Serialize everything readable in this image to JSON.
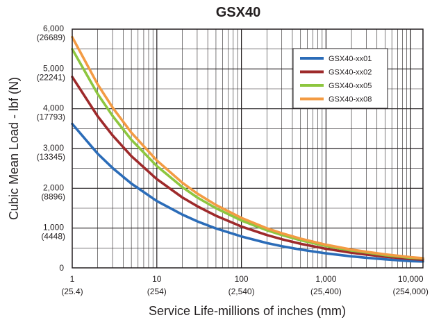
{
  "chart_data": {
    "type": "line",
    "title": "GSX40",
    "xlabel": "Service Life-millions of inches (mm)",
    "ylabel": "Cubic Mean Load - lbf (N)",
    "x_scale": "log",
    "xlim": [
      1,
      14000
    ],
    "ylim": [
      0,
      6000
    ],
    "grid": true,
    "legend_position": "top-right",
    "x_ticks": [
      {
        "value": 1,
        "label": "1",
        "sublabel": "(25.4)"
      },
      {
        "value": 10,
        "label": "10",
        "sublabel": "(254)"
      },
      {
        "value": 100,
        "label": "100",
        "sublabel": "(2,540)"
      },
      {
        "value": 1000,
        "label": "1,000",
        "sublabel": "(25,400)"
      },
      {
        "value": 10000,
        "label": "10,000",
        "sublabel": "(254,000)"
      }
    ],
    "y_ticks": [
      {
        "value": 0,
        "label": "0",
        "sublabel": ""
      },
      {
        "value": 1000,
        "label": "1,000",
        "sublabel": "(4448)"
      },
      {
        "value": 2000,
        "label": "2,000",
        "sublabel": "(8896)"
      },
      {
        "value": 3000,
        "label": "3,000",
        "sublabel": "(13345)"
      },
      {
        "value": 4000,
        "label": "4,000",
        "sublabel": "(17793)"
      },
      {
        "value": 5000,
        "label": "5,000",
        "sublabel": "(22241)"
      },
      {
        "value": 6000,
        "label": "6,000",
        "sublabel": "(26689)"
      }
    ],
    "x": [
      1,
      2,
      3,
      5,
      10,
      20,
      30,
      50,
      100,
      200,
      300,
      500,
      1000,
      2000,
      3000,
      5000,
      10000,
      14000
    ],
    "series": [
      {
        "name": "GSX40-xx01",
        "color": "#2b6cb8",
        "values": [
          3620,
          2870,
          2510,
          2120,
          1680,
          1340,
          1170,
          990,
          790,
          625,
          545,
          460,
          365,
          290,
          255,
          215,
          170,
          160
        ]
      },
      {
        "name": "GSX40-xx02",
        "color": "#9e2a2b",
        "values": [
          4800,
          3810,
          3330,
          2810,
          2230,
          1770,
          1550,
          1310,
          1040,
          825,
          720,
          605,
          480,
          380,
          335,
          280,
          225,
          205
        ]
      },
      {
        "name": "GSX40-xx05",
        "color": "#8dc63f",
        "values": [
          5500,
          4370,
          3820,
          3220,
          2560,
          2030,
          1770,
          1500,
          1190,
          945,
          825,
          695,
          550,
          435,
          385,
          320,
          255,
          235
        ]
      },
      {
        "name": "GSX40-xx08",
        "color": "#f39b43",
        "values": [
          5800,
          4610,
          4030,
          3400,
          2700,
          2140,
          1870,
          1580,
          1255,
          995,
          870,
          735,
          580,
          460,
          405,
          340,
          270,
          245
        ]
      }
    ]
  }
}
